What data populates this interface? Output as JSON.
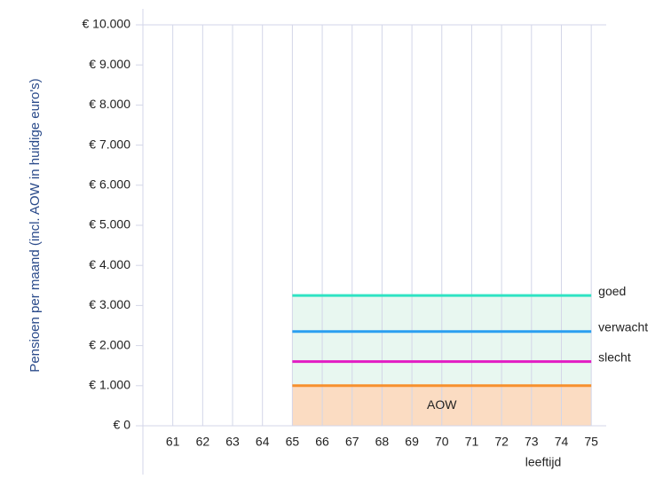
{
  "chart_data": {
    "type": "line",
    "y_label": "Pensioen per maand (incl. AOW in huidige euro's)",
    "x_label": "leeftijd",
    "x": [
      65,
      66,
      67,
      68,
      69,
      70,
      71,
      72,
      73,
      74,
      75
    ],
    "series": [
      {
        "name": "goed",
        "color": "#2fe3c3",
        "values": [
          3250,
          3250,
          3250,
          3250,
          3250,
          3250,
          3250,
          3250,
          3250,
          3250,
          3250
        ]
      },
      {
        "name": "verwacht",
        "color": "#2a9ff0",
        "values": [
          2350,
          2350,
          2350,
          2350,
          2350,
          2350,
          2350,
          2350,
          2350,
          2350,
          2350
        ]
      },
      {
        "name": "slecht",
        "color": "#e21cc3",
        "values": [
          1600,
          1600,
          1600,
          1600,
          1600,
          1600,
          1600,
          1600,
          1600,
          1600,
          1600
        ]
      },
      {
        "name": "AOW",
        "color": "#f7902e",
        "values": [
          1000,
          1000,
          1000,
          1000,
          1000,
          1000,
          1000,
          1000,
          1000,
          1000,
          1000
        ]
      }
    ],
    "xlim": [
      60,
      75.5
    ],
    "xticks": [
      61,
      62,
      63,
      64,
      65,
      66,
      67,
      68,
      69,
      70,
      71,
      72,
      73,
      74,
      75
    ],
    "ylim": [
      0,
      10000
    ],
    "yticks": [
      {
        "value": 0,
        "label": "€ 0"
      },
      {
        "value": 1000,
        "label": "€ 1.000"
      },
      {
        "value": 2000,
        "label": "€ 2.000"
      },
      {
        "value": 3000,
        "label": "€ 3.000"
      },
      {
        "value": 4000,
        "label": "€ 4.000"
      },
      {
        "value": 5000,
        "label": "€ 5.000"
      },
      {
        "value": 6000,
        "label": "€ 6.000"
      },
      {
        "value": 7000,
        "label": "€ 7.000"
      },
      {
        "value": 8000,
        "label": "€ 8.000"
      },
      {
        "value": 9000,
        "label": "€ 9.000"
      },
      {
        "value": 10000,
        "label": "€ 10.000"
      }
    ],
    "grid": true
  }
}
